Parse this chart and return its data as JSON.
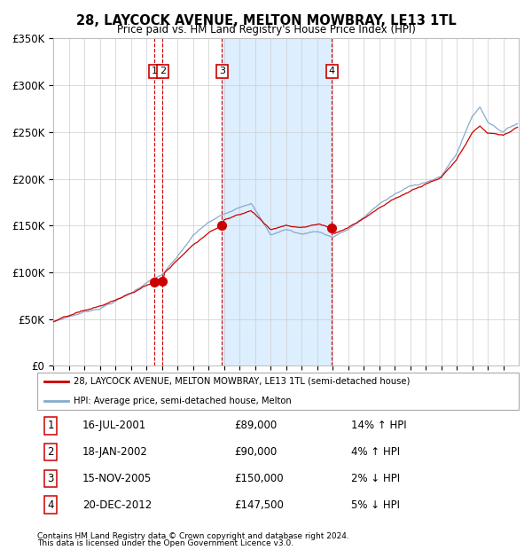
{
  "title": "28, LAYCOCK AVENUE, MELTON MOWBRAY, LE13 1TL",
  "subtitle": "Price paid vs. HM Land Registry's House Price Index (HPI)",
  "legend_line1": "28, LAYCOCK AVENUE, MELTON MOWBRAY, LE13 1TL (semi-detached house)",
  "legend_line2": "HPI: Average price, semi-detached house, Melton",
  "footer1": "Contains HM Land Registry data © Crown copyright and database right 2024.",
  "footer2": "This data is licensed under the Open Government Licence v3.0.",
  "ylim": [
    0,
    350000
  ],
  "yticks": [
    0,
    50000,
    100000,
    150000,
    200000,
    250000,
    300000,
    350000
  ],
  "ytick_labels": [
    "£0",
    "£50K",
    "£100K",
    "£150K",
    "£200K",
    "£250K",
    "£300K",
    "£350K"
  ],
  "red_line_color": "#cc0000",
  "blue_line_color": "#88aacc",
  "shade_color": "#ddeeff",
  "annotation_box_color": "#cc0000",
  "purchases": [
    {
      "num": 1,
      "date": "16-JUL-2001",
      "price": 89000,
      "pct": "14%",
      "dir": "↑",
      "year_x": 2001.54
    },
    {
      "num": 2,
      "date": "18-JAN-2002",
      "price": 90000,
      "pct": "4%",
      "dir": "↑",
      "year_x": 2002.05
    },
    {
      "num": 3,
      "date": "15-NOV-2005",
      "price": 150000,
      "pct": "2%",
      "dir": "↓",
      "year_x": 2005.88
    },
    {
      "num": 4,
      "date": "20-DEC-2012",
      "price": 147500,
      "pct": "5%",
      "dir": "↓",
      "year_x": 2012.97
    }
  ],
  "shade_x_start": 2005.88,
  "shade_x_end": 2012.97,
  "xlim": [
    1995,
    2025
  ],
  "xtick_start": 1995,
  "xtick_end": 2025
}
